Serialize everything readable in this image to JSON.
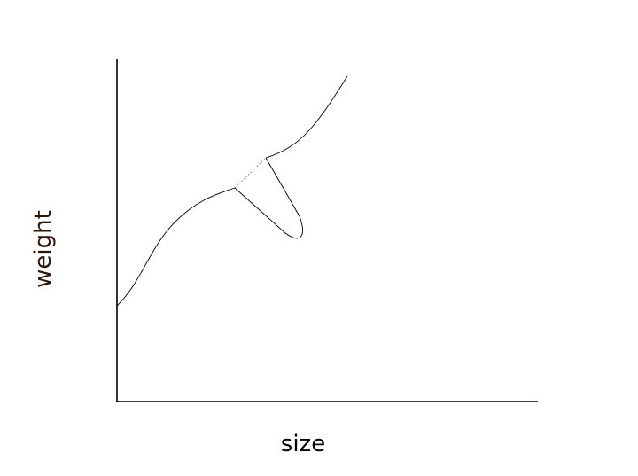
{
  "axes": {
    "xlabel": "size",
    "ylabel": "weight"
  },
  "colors": {
    "axis": "#000000",
    "curve": "#000000",
    "ylabel": "#2a1408"
  }
}
